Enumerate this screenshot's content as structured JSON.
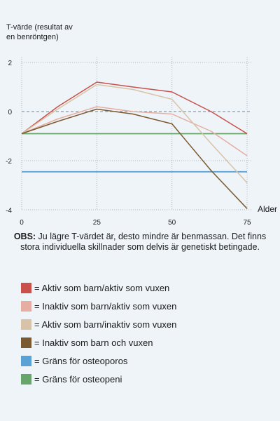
{
  "chart_data": {
    "type": "line",
    "ylabel_lines": [
      "T-värde (resultat av",
      "en benröntgen)"
    ],
    "xlabel": "Alder",
    "x_ticks": [
      0,
      25,
      50,
      75
    ],
    "y_ticks": [
      2,
      0,
      -2,
      -4
    ],
    "xlim": [
      0,
      75
    ],
    "ylim": [
      -4,
      2
    ],
    "grid": true,
    "grid_style": "dotted",
    "zero_line": {
      "y": 0,
      "color": "#8a9aa8",
      "style": "dashed"
    },
    "series": [
      {
        "name": "= Aktiv som barn/aktiv som vuxen",
        "color": "#c9504b",
        "x": [
          0,
          12,
          25,
          37,
          50,
          63,
          75
        ],
        "y": [
          -0.9,
          0.2,
          1.2,
          1.0,
          0.8,
          0.0,
          -0.9
        ]
      },
      {
        "name": "= Inaktiv som barn/aktiv som vuxen",
        "color": "#e6ada3",
        "x": [
          0,
          12,
          25,
          37,
          50,
          63,
          75
        ],
        "y": [
          -0.9,
          -0.3,
          0.2,
          0.0,
          -0.1,
          -0.8,
          -1.8
        ]
      },
      {
        "name": "= Aktiv som barn/inaktiv som vuxen",
        "color": "#d8c3a8",
        "x": [
          0,
          12,
          25,
          37,
          50,
          63,
          75
        ],
        "y": [
          -0.9,
          0.1,
          1.1,
          0.9,
          0.5,
          -1.3,
          -2.9
        ]
      },
      {
        "name": "= Inaktiv som barn och vuxen",
        "color": "#7a5a30",
        "x": [
          0,
          12,
          25,
          37,
          50,
          63,
          75
        ],
        "y": [
          -0.9,
          -0.4,
          0.1,
          -0.1,
          -0.5,
          -2.4,
          -3.95
        ]
      },
      {
        "name": "= Gräns för osteoporos",
        "color": "#5aa2d6",
        "x": [
          0,
          75
        ],
        "y": [
          -2.45,
          -2.45
        ]
      },
      {
        "name": "= Gräns för osteopeni",
        "color": "#68a56a",
        "x": [
          0,
          75
        ],
        "y": [
          -0.9,
          -0.9
        ]
      }
    ]
  },
  "note": {
    "bold": "OBS:",
    "text": " Ju lägre T-värdet är, desto mindre är benmassan. Det finns stora individuella skillnader som delvis är genetiskt betingade."
  }
}
